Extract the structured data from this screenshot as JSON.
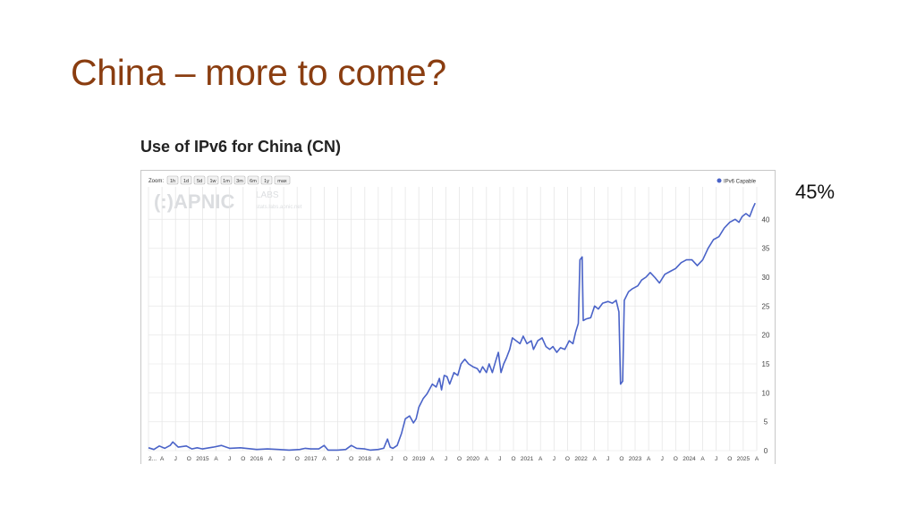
{
  "slide": {
    "title": "China – more to come?",
    "annotation": "45%"
  },
  "chart_data": {
    "type": "line",
    "title": "Use of IPv6 for China (CN)",
    "zoom_label": "Zoom:",
    "zoom_options": [
      "1h",
      "1d",
      "5d",
      "1w",
      "1m",
      "3m",
      "6m",
      "1y",
      "max"
    ],
    "watermark": {
      "brand": "(:)APNIC",
      "sub": "LABS",
      "url": "stats.labs.apnic.net"
    },
    "legend": {
      "position": "top-right",
      "entries": [
        "IPv6 Capable"
      ]
    },
    "series_color": "#4a63c8",
    "ylim": [
      0,
      45
    ],
    "y_ticks": [
      0,
      5,
      10,
      15,
      20,
      25,
      30,
      35,
      40
    ],
    "grid": true,
    "x_tick_labels": [
      "2...",
      "A",
      "J",
      "O",
      "2015",
      "A",
      "J",
      "O",
      "2016",
      "A",
      "J",
      "O",
      "2017",
      "A",
      "J",
      "O",
      "2018",
      "A",
      "J",
      "O",
      "2019",
      "A",
      "J",
      "O",
      "2020",
      "A",
      "J",
      "O",
      "2021",
      "A",
      "J",
      "O",
      "2022",
      "A",
      "J",
      "O",
      "2023",
      "A",
      "J",
      "O",
      "2024",
      "A",
      "J",
      "O",
      "2025",
      "A"
    ],
    "series": [
      {
        "name": "IPv6 Capable",
        "points": [
          [
            2014.0,
            0.5
          ],
          [
            2014.1,
            0.2
          ],
          [
            2014.2,
            0.8
          ],
          [
            2014.3,
            0.4
          ],
          [
            2014.4,
            0.9
          ],
          [
            2014.45,
            1.5
          ],
          [
            2014.55,
            0.6
          ],
          [
            2014.7,
            0.8
          ],
          [
            2014.8,
            0.3
          ],
          [
            2014.9,
            0.5
          ],
          [
            2015.0,
            0.3
          ],
          [
            2015.2,
            0.6
          ],
          [
            2015.35,
            0.9
          ],
          [
            2015.5,
            0.4
          ],
          [
            2015.7,
            0.5
          ],
          [
            2015.9,
            0.3
          ],
          [
            2016.0,
            0.2
          ],
          [
            2016.2,
            0.3
          ],
          [
            2016.4,
            0.2
          ],
          [
            2016.6,
            0.1
          ],
          [
            2016.8,
            0.2
          ],
          [
            2016.9,
            0.4
          ],
          [
            2017.0,
            0.3
          ],
          [
            2017.15,
            0.3
          ],
          [
            2017.25,
            0.9
          ],
          [
            2017.32,
            0.1
          ],
          [
            2017.5,
            0.1
          ],
          [
            2017.65,
            0.2
          ],
          [
            2017.75,
            0.9
          ],
          [
            2017.85,
            0.4
          ],
          [
            2018.0,
            0.3
          ],
          [
            2018.1,
            0.1
          ],
          [
            2018.25,
            0.2
          ],
          [
            2018.35,
            0.4
          ],
          [
            2018.42,
            2.0
          ],
          [
            2018.47,
            0.6
          ],
          [
            2018.52,
            0.4
          ],
          [
            2018.6,
            0.9
          ],
          [
            2018.68,
            3.0
          ],
          [
            2018.75,
            5.5
          ],
          [
            2018.83,
            6.0
          ],
          [
            2018.9,
            4.8
          ],
          [
            2018.95,
            5.5
          ],
          [
            2019.0,
            7.5
          ],
          [
            2019.08,
            9.0
          ],
          [
            2019.15,
            9.8
          ],
          [
            2019.25,
            11.5
          ],
          [
            2019.32,
            11.0
          ],
          [
            2019.38,
            12.5
          ],
          [
            2019.42,
            10.5
          ],
          [
            2019.47,
            13.0
          ],
          [
            2019.52,
            12.8
          ],
          [
            2019.57,
            11.5
          ],
          [
            2019.65,
            13.5
          ],
          [
            2019.72,
            13.0
          ],
          [
            2019.78,
            15.0
          ],
          [
            2019.85,
            15.8
          ],
          [
            2019.92,
            15.0
          ],
          [
            2020.0,
            14.5
          ],
          [
            2020.08,
            14.2
          ],
          [
            2020.13,
            13.5
          ],
          [
            2020.18,
            14.5
          ],
          [
            2020.25,
            13.5
          ],
          [
            2020.3,
            15.0
          ],
          [
            2020.36,
            13.5
          ],
          [
            2020.42,
            15.5
          ],
          [
            2020.47,
            17.0
          ],
          [
            2020.52,
            13.5
          ],
          [
            2020.57,
            15.0
          ],
          [
            2020.62,
            16.0
          ],
          [
            2020.68,
            17.5
          ],
          [
            2020.73,
            19.5
          ],
          [
            2020.8,
            19.0
          ],
          [
            2020.87,
            18.5
          ],
          [
            2020.93,
            19.8
          ],
          [
            2021.0,
            18.5
          ],
          [
            2021.08,
            19.0
          ],
          [
            2021.12,
            17.5
          ],
          [
            2021.2,
            19.0
          ],
          [
            2021.28,
            19.5
          ],
          [
            2021.35,
            18.0
          ],
          [
            2021.42,
            17.5
          ],
          [
            2021.48,
            18.0
          ],
          [
            2021.55,
            17.0
          ],
          [
            2021.62,
            17.8
          ],
          [
            2021.7,
            17.5
          ],
          [
            2021.78,
            19.0
          ],
          [
            2021.85,
            18.5
          ],
          [
            2021.9,
            20.5
          ],
          [
            2021.95,
            22.0
          ],
          [
            2021.98,
            33.0
          ],
          [
            2022.02,
            33.5
          ],
          [
            2022.04,
            22.5
          ],
          [
            2022.1,
            22.8
          ],
          [
            2022.18,
            23.0
          ],
          [
            2022.25,
            25.0
          ],
          [
            2022.32,
            24.5
          ],
          [
            2022.4,
            25.5
          ],
          [
            2022.5,
            25.8
          ],
          [
            2022.58,
            25.5
          ],
          [
            2022.65,
            26.0
          ],
          [
            2022.7,
            24.0
          ],
          [
            2022.73,
            11.5
          ],
          [
            2022.77,
            12.0
          ],
          [
            2022.8,
            26.0
          ],
          [
            2022.88,
            27.5
          ],
          [
            2022.95,
            28.0
          ],
          [
            2023.05,
            28.5
          ],
          [
            2023.12,
            29.5
          ],
          [
            2023.2,
            30.0
          ],
          [
            2023.28,
            30.8
          ],
          [
            2023.36,
            30.0
          ],
          [
            2023.45,
            29.0
          ],
          [
            2023.55,
            30.5
          ],
          [
            2023.65,
            31.0
          ],
          [
            2023.75,
            31.5
          ],
          [
            2023.85,
            32.5
          ],
          [
            2023.95,
            33.0
          ],
          [
            2024.05,
            33.0
          ],
          [
            2024.15,
            32.0
          ],
          [
            2024.25,
            33.0
          ],
          [
            2024.35,
            35.0
          ],
          [
            2024.45,
            36.5
          ],
          [
            2024.55,
            37.0
          ],
          [
            2024.65,
            38.5
          ],
          [
            2024.75,
            39.5
          ],
          [
            2024.85,
            40.0
          ],
          [
            2024.92,
            39.5
          ],
          [
            2024.98,
            40.5
          ],
          [
            2025.05,
            41.0
          ],
          [
            2025.12,
            40.5
          ],
          [
            2025.18,
            42.0
          ],
          [
            2025.22,
            42.8
          ]
        ]
      }
    ]
  }
}
